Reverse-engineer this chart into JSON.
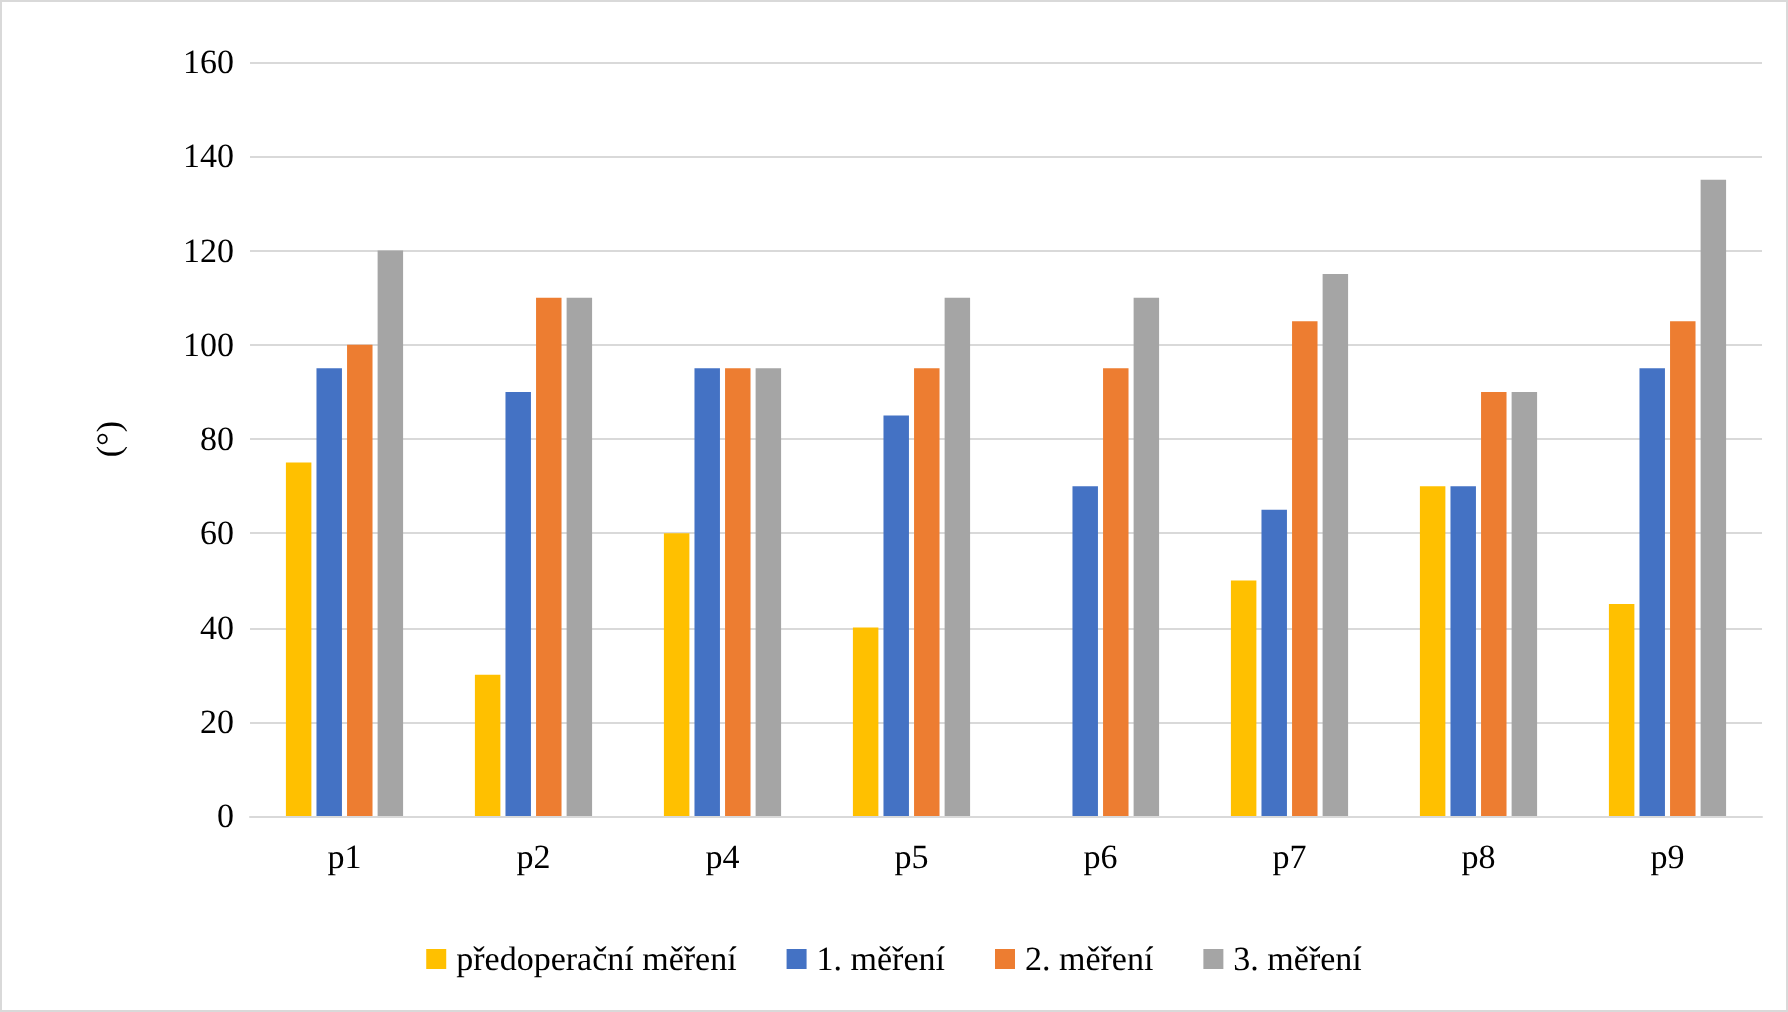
{
  "chart_data": {
    "type": "bar",
    "ylabel": "(°)",
    "categories": [
      "p1",
      "p2",
      "p4",
      "p5",
      "p6",
      "p7",
      "p8",
      "p9"
    ],
    "series": [
      {
        "name": "předoperační měření",
        "color": "#ffc000",
        "values": [
          75,
          30,
          60,
          40,
          null,
          50,
          70,
          45
        ]
      },
      {
        "name": "1. měření",
        "color": "#4472c4",
        "values": [
          95,
          90,
          95,
          85,
          70,
          65,
          70,
          95
        ]
      },
      {
        "name": "2. měření",
        "color": "#ed7d31",
        "values": [
          100,
          110,
          95,
          95,
          95,
          105,
          90,
          105
        ]
      },
      {
        "name": "3. měření",
        "color": "#a5a5a5",
        "values": [
          120,
          110,
          95,
          110,
          110,
          115,
          90,
          135
        ]
      }
    ],
    "ylim": [
      0,
      160
    ],
    "yticks": [
      0,
      20,
      40,
      60,
      80,
      100,
      120,
      140,
      160
    ],
    "grid": "y",
    "legend": "bottom"
  }
}
